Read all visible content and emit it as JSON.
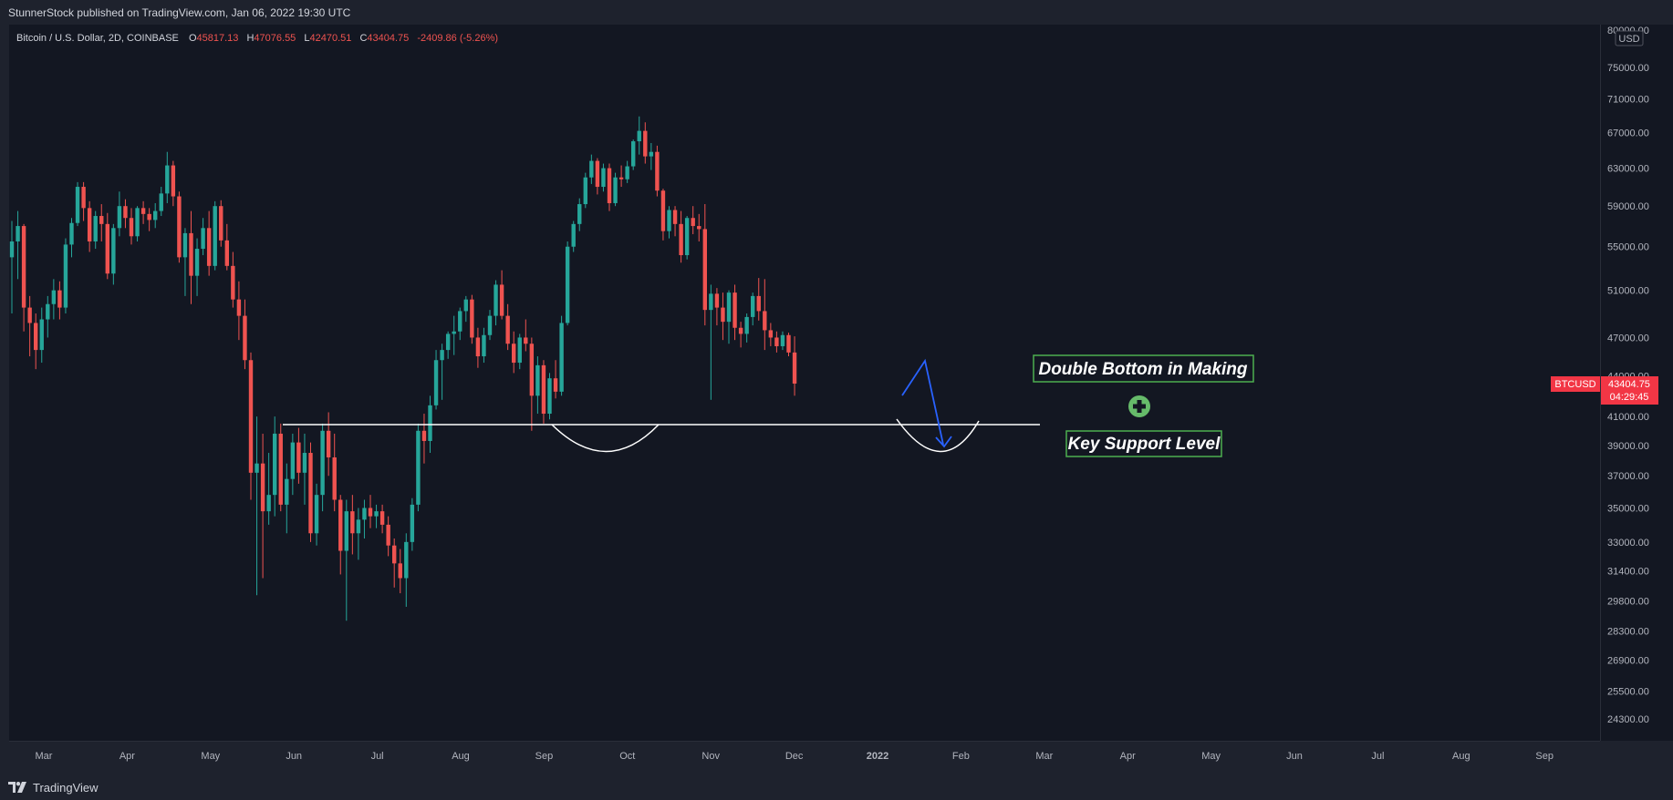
{
  "header": {
    "published_text": "StunnerStock published on TradingView.com, Jan 06, 2022 19:30 UTC"
  },
  "legend": {
    "symbol_desc": "Bitcoin / U.S. Dollar, 2D, COINBASE",
    "open_label": "O",
    "open_value": "45817.13",
    "high_label": "H",
    "high_value": "47076.55",
    "low_label": "L",
    "low_value": "42470.51",
    "close_label": "C",
    "close_value": "43404.75",
    "change": "-2409.86 (-5.26%)"
  },
  "price_axis": {
    "currency": "USD",
    "ticks": [
      "80000.00",
      "75000.00",
      "71000.00",
      "67000.00",
      "63000.00",
      "59000.00",
      "55000.00",
      "51000.00",
      "47000.00",
      "44000.00",
      "41000.00",
      "39000.00",
      "37000.00",
      "35000.00",
      "33000.00",
      "31400.00",
      "29800.00",
      "28300.00",
      "26900.00",
      "25500.00",
      "24300.00"
    ],
    "symbol_label": "BTCUSD",
    "last_price": "43404.75",
    "countdown": "04:29:45"
  },
  "time_axis": {
    "ticks": [
      "Mar",
      "Apr",
      "May",
      "Jun",
      "Jul",
      "Aug",
      "Sep",
      "Oct",
      "Nov",
      "Dec",
      "2022",
      "Feb",
      "Mar",
      "Apr",
      "May",
      "Jun",
      "Jul",
      "Aug",
      "Sep"
    ]
  },
  "annotations": {
    "double_bottom": "Double Bottom in Making",
    "key_support": "Key Support Level"
  },
  "footer": {
    "brand": "TradingView"
  },
  "colors": {
    "background": "#131722",
    "up": "#26a69a",
    "down": "#ef5350",
    "support_line": "#ffffff",
    "projection": "#2962ff",
    "label_border": "#4caf50"
  },
  "chart_data": {
    "type": "candlestick",
    "symbol": "BTCUSD",
    "timeframe": "2D",
    "ylim": [
      23500,
      80000
    ],
    "y_scale": "log",
    "ohlc": [
      [
        54000,
        57500,
        49000,
        55500
      ],
      [
        55500,
        58500,
        52000,
        57000
      ],
      [
        57000,
        57200,
        47500,
        49500
      ],
      [
        49500,
        50500,
        45500,
        48200
      ],
      [
        48200,
        49000,
        44500,
        46000
      ],
      [
        46000,
        49500,
        45000,
        48500
      ],
      [
        48500,
        50500,
        47000,
        49800
      ],
      [
        49800,
        52000,
        48500,
        51000
      ],
      [
        51000,
        51800,
        48500,
        49500
      ],
      [
        49500,
        55800,
        49000,
        55200
      ],
      [
        55200,
        57800,
        54000,
        57300
      ],
      [
        57300,
        61500,
        57000,
        61000
      ],
      [
        61000,
        61500,
        57500,
        58800
      ],
      [
        58800,
        59500,
        54500,
        55500
      ],
      [
        55500,
        58500,
        54800,
        58000
      ],
      [
        58000,
        59200,
        55500,
        57200
      ],
      [
        57200,
        58300,
        52000,
        52500
      ],
      [
        52500,
        57200,
        51500,
        56800
      ],
      [
        56800,
        60500,
        56000,
        59000
      ],
      [
        59000,
        59700,
        56800,
        57800
      ],
      [
        57800,
        58800,
        55200,
        56000
      ],
      [
        56000,
        59000,
        55500,
        58800
      ],
      [
        58800,
        59500,
        57200,
        58200
      ],
      [
        58200,
        58800,
        56500,
        57600
      ],
      [
        57600,
        59300,
        56800,
        58500
      ],
      [
        58500,
        61000,
        58000,
        60300
      ],
      [
        60300,
        64800,
        59300,
        63300
      ],
      [
        63300,
        63800,
        59000,
        60000
      ],
      [
        60000,
        60500,
        53500,
        54000
      ],
      [
        54000,
        56800,
        50500,
        56300
      ],
      [
        56300,
        58500,
        49800,
        52300
      ],
      [
        52300,
        55800,
        50500,
        54800
      ],
      [
        54800,
        57800,
        54200,
        56800
      ],
      [
        56800,
        58500,
        52300,
        53200
      ],
      [
        53200,
        59500,
        52800,
        59000
      ],
      [
        59000,
        59600,
        55000,
        55600
      ],
      [
        55600,
        57200,
        52800,
        53200
      ],
      [
        53200,
        54500,
        49500,
        50200
      ],
      [
        50200,
        51800,
        46800,
        48800
      ],
      [
        48800,
        50200,
        44500,
        45200
      ],
      [
        45200,
        45800,
        35500,
        37200
      ],
      [
        37200,
        41000,
        30100,
        37800
      ],
      [
        37800,
        39800,
        31000,
        34800
      ],
      [
        34800,
        38500,
        34000,
        35800
      ],
      [
        35800,
        41000,
        34500,
        39800
      ],
      [
        39800,
        40500,
        34800,
        35200
      ],
      [
        35200,
        37800,
        33500,
        36800
      ],
      [
        36800,
        39800,
        35800,
        39200
      ],
      [
        39200,
        40200,
        36500,
        37200
      ],
      [
        37200,
        39800,
        35200,
        38500
      ],
      [
        38500,
        39200,
        33000,
        33500
      ],
      [
        33500,
        36500,
        32800,
        35800
      ],
      [
        35800,
        40500,
        34800,
        40000
      ],
      [
        40000,
        41300,
        37000,
        38200
      ],
      [
        38200,
        39800,
        34800,
        35500
      ],
      [
        35500,
        35800,
        31200,
        32500
      ],
      [
        32500,
        35500,
        28800,
        34800
      ],
      [
        34800,
        35800,
        32300,
        33500
      ],
      [
        33500,
        35000,
        32000,
        34300
      ],
      [
        34300,
        35500,
        33200,
        35000
      ],
      [
        35000,
        35800,
        33800,
        34500
      ],
      [
        34500,
        35200,
        33800,
        34800
      ],
      [
        34800,
        35200,
        33500,
        34000
      ],
      [
        34000,
        34500,
        32200,
        32800
      ],
      [
        32800,
        33200,
        30500,
        31800
      ],
      [
        31800,
        32600,
        30200,
        31000
      ],
      [
        31000,
        33500,
        29500,
        33000
      ],
      [
        33000,
        35600,
        32500,
        35200
      ],
      [
        35200,
        40500,
        34800,
        40000
      ],
      [
        40000,
        41200,
        37800,
        39300
      ],
      [
        39300,
        42500,
        38500,
        41800
      ],
      [
        41800,
        46000,
        41500,
        45200
      ],
      [
        45200,
        46500,
        42200,
        46000
      ],
      [
        46000,
        47500,
        45300,
        47300
      ],
      [
        47300,
        48800,
        45600,
        47500
      ],
      [
        47500,
        49500,
        46800,
        49200
      ],
      [
        49200,
        50500,
        48300,
        50200
      ],
      [
        50200,
        50600,
        46500,
        47000
      ],
      [
        47000,
        47800,
        44600,
        45500
      ],
      [
        45500,
        47800,
        45000,
        47200
      ],
      [
        47200,
        49300,
        46800,
        48800
      ],
      [
        48800,
        51900,
        48000,
        51500
      ],
      [
        51500,
        52800,
        48500,
        48800
      ],
      [
        48800,
        49800,
        46000,
        46500
      ],
      [
        46500,
        47500,
        44200,
        45000
      ],
      [
        45000,
        47300,
        44500,
        47000
      ],
      [
        47000,
        48500,
        45900,
        46500
      ],
      [
        46500,
        47000,
        40000,
        42500
      ],
      [
        42500,
        45500,
        41200,
        44800
      ],
      [
        44800,
        45200,
        40500,
        41200
      ],
      [
        41200,
        44200,
        40800,
        43800
      ],
      [
        43800,
        45200,
        42300,
        42800
      ],
      [
        42800,
        48800,
        42500,
        48200
      ],
      [
        48200,
        55500,
        48000,
        55000
      ],
      [
        55000,
        57500,
        54500,
        57200
      ],
      [
        57200,
        59800,
        56500,
        59200
      ],
      [
        59200,
        62500,
        58800,
        62000
      ],
      [
        62000,
        64500,
        61300,
        63800
      ],
      [
        63800,
        64100,
        60200,
        61000
      ],
      [
        61000,
        63500,
        60500,
        63000
      ],
      [
        63000,
        63500,
        58500,
        59300
      ],
      [
        59300,
        62500,
        59000,
        62000
      ],
      [
        62000,
        63300,
        61000,
        61800
      ],
      [
        61800,
        63800,
        61400,
        63200
      ],
      [
        63200,
        66200,
        62800,
        66000
      ],
      [
        66000,
        68900,
        64500,
        67200
      ],
      [
        67200,
        68200,
        63500,
        64300
      ],
      [
        64300,
        65800,
        62800,
        64800
      ],
      [
        64800,
        65500,
        60000,
        60600
      ],
      [
        60600,
        60800,
        55600,
        56500
      ],
      [
        56500,
        59000,
        55800,
        58600
      ],
      [
        58600,
        59000,
        56000,
        57200
      ],
      [
        57200,
        58500,
        53500,
        54200
      ],
      [
        54200,
        58000,
        53800,
        57800
      ],
      [
        57800,
        59000,
        56200,
        57000
      ],
      [
        57000,
        58200,
        55500,
        56700
      ],
      [
        56700,
        59200,
        48000,
        49300
      ],
      [
        49300,
        51500,
        42200,
        50700
      ],
      [
        50700,
        51200,
        48000,
        49500
      ],
      [
        49500,
        50800,
        46800,
        48300
      ],
      [
        48300,
        51000,
        46500,
        50800
      ],
      [
        50800,
        51500,
        46800,
        47800
      ],
      [
        47800,
        48300,
        46200,
        47300
      ],
      [
        47300,
        49000,
        46600,
        48700
      ],
      [
        48700,
        50800,
        48000,
        50500
      ],
      [
        50500,
        52100,
        48400,
        49200
      ],
      [
        49200,
        52000,
        46000,
        47600
      ],
      [
        47600,
        48200,
        46300,
        47000
      ],
      [
        47000,
        47500,
        45800,
        46300
      ],
      [
        46300,
        47500,
        46000,
        47200
      ],
      [
        47200,
        47400,
        45500,
        45800
      ],
      [
        45800,
        47100,
        42500,
        43400
      ]
    ],
    "support_level": 40300,
    "annotations": [
      "Double Bottom in Making",
      "Key Support Level"
    ]
  }
}
